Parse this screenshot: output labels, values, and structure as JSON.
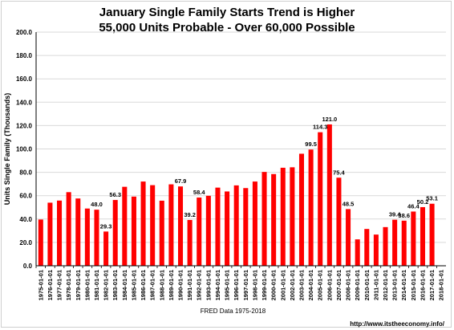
{
  "chart_data": {
    "type": "bar",
    "title": "January Single Family Starts Trend is Higher",
    "subtitle": "55,000 Units Probable - Over 60,000 Possible",
    "xlabel": "FRED  Data 1975-2018",
    "ylabel": "Units Single Family (Thousands)",
    "ylim": [
      0,
      200
    ],
    "yticks": [
      "0.0",
      "20.0",
      "40.0",
      "60.0",
      "80.0",
      "100.0",
      "120.0",
      "140.0",
      "160.0",
      "180.0",
      "200.0"
    ],
    "grid": true,
    "categories": [
      "1975-01-01",
      "1976-01-01",
      "1977-01-01",
      "1978-01-01",
      "1979-01-01",
      "1980-01-01",
      "1981-01-01",
      "1982-01-01",
      "1983-01-01",
      "1984-01-01",
      "1985-01-01",
      "1986-01-01",
      "1987-01-01",
      "1988-01-01",
      "1989-01-01",
      "1990-01-01",
      "1991-01-01",
      "1992-01-01",
      "1993-01-01",
      "1994-01-01",
      "1995-01-01",
      "1996-01-01",
      "1997-01-01",
      "1998-01-01",
      "1999-01-01",
      "2000-01-01",
      "2001-01-01",
      "2002-01-01",
      "2003-01-01",
      "2004-01-01",
      "2005-01-01",
      "2006-01-01",
      "2007-01-01",
      "2008-01-01",
      "2009-01-01",
      "2010-01-01",
      "2011-01-01",
      "2012-01-01",
      "2013-01-01",
      "2014-01-01",
      "2015-01-01",
      "2016-01-01",
      "2017-01-01",
      "2018-01-01"
    ],
    "values": [
      39.6,
      54.0,
      55.8,
      63.0,
      57.6,
      49.0,
      48.0,
      29.3,
      56.3,
      67.6,
      59.2,
      72.1,
      69.0,
      55.7,
      69.7,
      67.9,
      39.2,
      58.4,
      59.9,
      66.9,
      63.6,
      68.8,
      66.5,
      72.1,
      80.3,
      78.5,
      83.9,
      84.3,
      95.9,
      99.5,
      114.3,
      121.0,
      75.4,
      48.5,
      22.6,
      31.5,
      26.7,
      33.1,
      39.4,
      38.6,
      46.4,
      50.2,
      53.1,
      null
    ],
    "data_labels": [
      {
        "index": 6,
        "text": "48.0"
      },
      {
        "index": 7,
        "text": "29.3"
      },
      {
        "index": 8,
        "text": "56.3"
      },
      {
        "index": 15,
        "text": "67.9"
      },
      {
        "index": 16,
        "text": "39.2"
      },
      {
        "index": 17,
        "text": "58.4"
      },
      {
        "index": 29,
        "text": "99.5"
      },
      {
        "index": 30,
        "text": "114.3"
      },
      {
        "index": 31,
        "text": "121.0"
      },
      {
        "index": 32,
        "text": "75.4"
      },
      {
        "index": 33,
        "text": "48.5"
      },
      {
        "index": 38,
        "text": "39.4"
      },
      {
        "index": 39,
        "text": "38.6"
      },
      {
        "index": 40,
        "text": "46.4"
      },
      {
        "index": 41,
        "text": "50.2"
      },
      {
        "index": 42,
        "text": "53.1"
      }
    ],
    "colors": {
      "bar": "#ff0000",
      "grid": "#d9d9d9",
      "axis": "#000000"
    },
    "legend": "none"
  },
  "footer": {
    "url": "http://www.itstheeconomy.info/"
  }
}
